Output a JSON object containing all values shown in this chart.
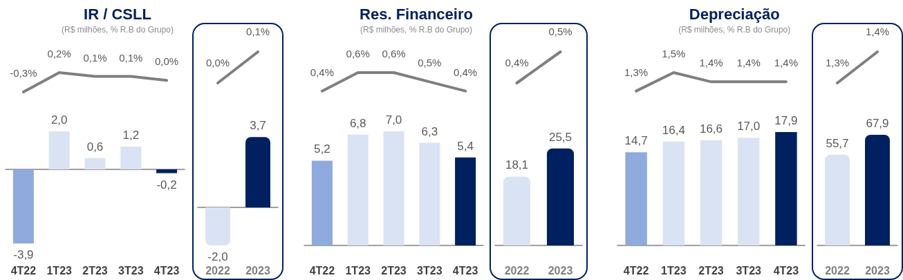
{
  "chart_data": [
    {
      "type": "line",
      "title": "IR / CSLL",
      "subtitle": "(R$ milhões, % R.B do Grupo)",
      "categories": [
        null,
        null,
        null,
        null,
        null
      ],
      "series": [
        {
          "color": "#7f7f7f",
          "values": [
            -0.3,
            0.2,
            0.1,
            0.1,
            0.0
          ],
          "value_labels": [
            "-0,3%",
            "0,2%",
            "0,1%",
            "0,1%",
            "0,0%"
          ]
        }
      ]
    },
    {
      "type": "bar",
      "categories": [
        "4T22",
        "1T23",
        "2T23",
        "3T23",
        "4T23"
      ],
      "series": [
        {
          "colors": [
            "#8faadc",
            "#dae3f3",
            "#dae3f3",
            "#dae3f3",
            "#002060"
          ],
          "values": [
            -3.9,
            2.0,
            0.6,
            1.2,
            -0.2
          ],
          "value_labels": [
            "-3,9",
            "2,0",
            "0,6",
            "1,2",
            "-0,2"
          ]
        }
      ]
    },
    {
      "type": "line",
      "categories": [
        null,
        null
      ],
      "series": [
        {
          "color": "#7f7f7f",
          "values": [
            0.0,
            0.1
          ],
          "value_labels": [
            "0,0%",
            "0,1%"
          ]
        }
      ]
    },
    {
      "type": "bar",
      "categories": [
        "2022",
        "2023"
      ],
      "series": [
        {
          "colors": [
            "#dae3f3",
            "#002060"
          ],
          "values": [
            -2.0,
            3.7
          ],
          "value_labels": [
            "-2,0",
            "3,7"
          ]
        }
      ]
    },
    {
      "type": "line",
      "title": "Res. Financeiro",
      "subtitle": "(R$ milhões, % R.B do Grupo)",
      "categories": [
        null,
        null,
        null,
        null,
        null
      ],
      "series": [
        {
          "color": "#7f7f7f",
          "values": [
            0.4,
            0.6,
            0.6,
            0.5,
            0.4
          ],
          "value_labels": [
            "0,4%",
            "0,6%",
            "0,6%",
            "0,5%",
            "0,4%"
          ]
        }
      ]
    },
    {
      "type": "bar",
      "categories": [
        "4T22",
        "1T23",
        "2T23",
        "3T23",
        "4T23"
      ],
      "series": [
        {
          "colors": [
            "#8faadc",
            "#dae3f3",
            "#dae3f3",
            "#dae3f3",
            "#002060"
          ],
          "values": [
            5.2,
            6.8,
            7.0,
            6.3,
            5.4
          ],
          "value_labels": [
            "5,2",
            "6,8",
            "7,0",
            "6,3",
            "5,4"
          ]
        }
      ]
    },
    {
      "type": "line",
      "categories": [
        null,
        null
      ],
      "series": [
        {
          "color": "#7f7f7f",
          "values": [
            0.4,
            0.5
          ],
          "value_labels": [
            "0,4%",
            "0,5%"
          ]
        }
      ]
    },
    {
      "type": "bar",
      "categories": [
        "2022",
        "2023"
      ],
      "series": [
        {
          "colors": [
            "#dae3f3",
            "#002060"
          ],
          "values": [
            18.1,
            25.5
          ],
          "value_labels": [
            "18,1",
            "25,5"
          ]
        }
      ]
    },
    {
      "type": "line",
      "title": "Depreciação",
      "subtitle": "(R$ milhões, % R.B do Grupo)",
      "categories": [
        null,
        null,
        null,
        null,
        null
      ],
      "series": [
        {
          "color": "#7f7f7f",
          "values": [
            1.3,
            1.5,
            1.4,
            1.4,
            1.4
          ],
          "value_labels": [
            "1,3%",
            "1,5%",
            "1,4%",
            "1,4%",
            "1,4%"
          ]
        }
      ]
    },
    {
      "type": "bar",
      "categories": [
        "4T22",
        "1T23",
        "2T23",
        "3T23",
        "4T23"
      ],
      "series": [
        {
          "colors": [
            "#8faadc",
            "#dae3f3",
            "#dae3f3",
            "#dae3f3",
            "#002060"
          ],
          "values": [
            14.7,
            16.4,
            16.6,
            17.0,
            17.9
          ],
          "value_labels": [
            "14,7",
            "16,4",
            "16,6",
            "17,0",
            "17,9"
          ]
        }
      ]
    },
    {
      "type": "line",
      "categories": [
        null,
        null
      ],
      "series": [
        {
          "color": "#7f7f7f",
          "values": [
            1.3,
            1.4
          ],
          "value_labels": [
            "1,3%",
            "1,4%"
          ]
        }
      ]
    },
    {
      "type": "bar",
      "categories": [
        "2022",
        "2023"
      ],
      "series": [
        {
          "colors": [
            "#dae3f3",
            "#002060"
          ],
          "values": [
            55.7,
            67.9
          ],
          "value_labels": [
            "55,7",
            "67,9"
          ]
        }
      ]
    }
  ]
}
